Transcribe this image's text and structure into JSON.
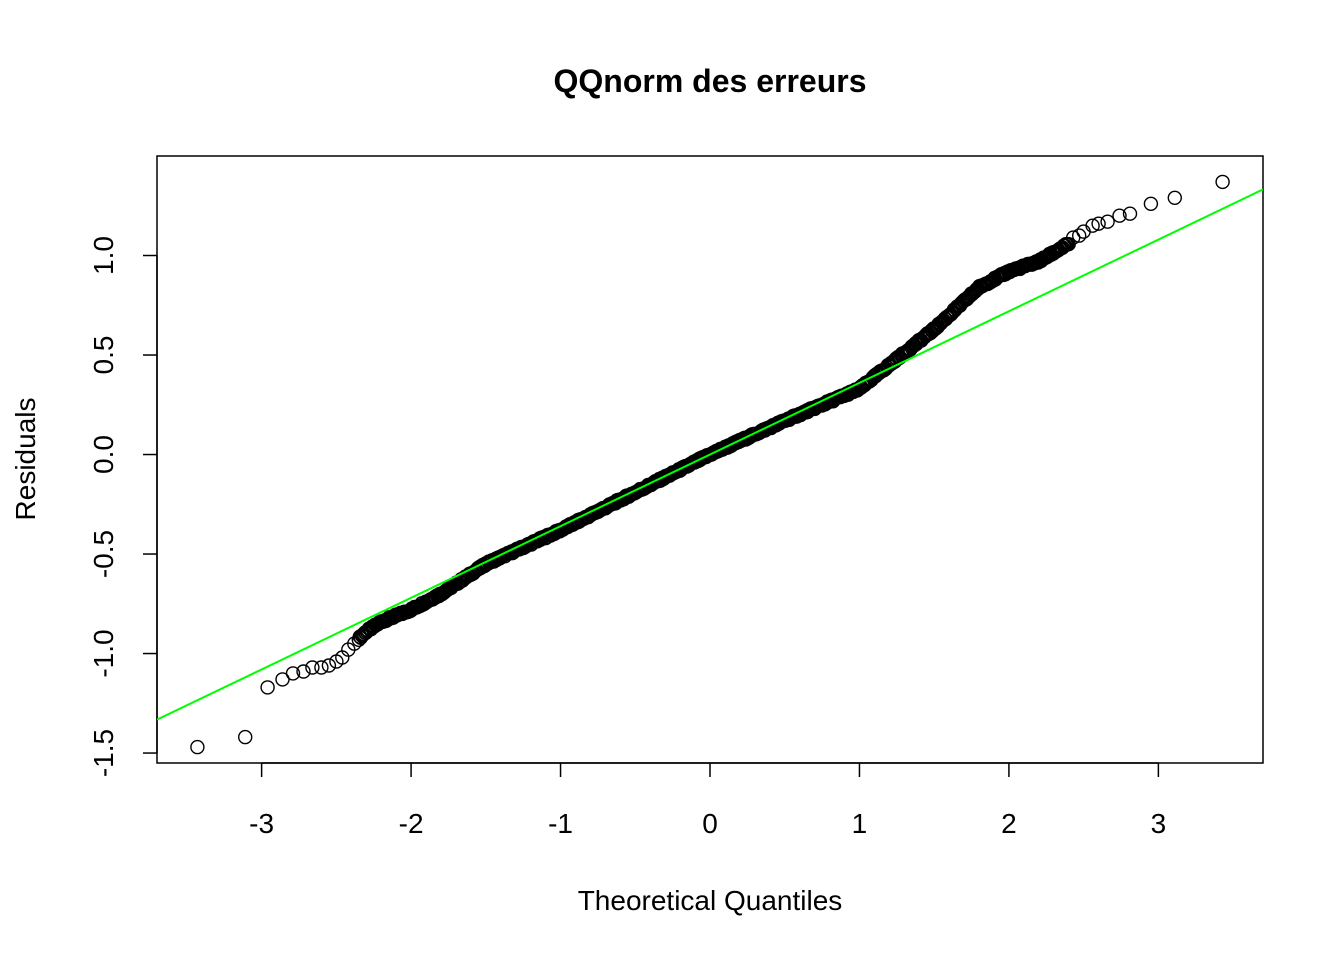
{
  "chart_data": {
    "type": "scatter",
    "title": "QQnorm des erreurs",
    "xlabel": "Theoretical Quantiles",
    "ylabel": "Residuals",
    "xlim": [
      -3.7,
      3.7
    ],
    "ylim": [
      -1.55,
      1.5
    ],
    "xticks": [
      -3,
      -2,
      -1,
      0,
      1,
      2,
      3
    ],
    "xtick_labels": [
      "-3",
      "-2",
      "-1",
      "0",
      "1",
      "2",
      "3"
    ],
    "yticks": [
      -1.5,
      -1.0,
      -0.5,
      0.0,
      0.5,
      1.0
    ],
    "ytick_labels": [
      "-1.5",
      "-1.0",
      "-0.5",
      "0.0",
      "0.5",
      "1.0"
    ],
    "grid": false,
    "colors": {
      "points": "#000000",
      "qqline": "#00ff00"
    },
    "qqline": {
      "slope": 0.36,
      "intercept": 0.0
    },
    "sample_size": 4000,
    "anchors": [
      [
        -3.43,
        -1.47
      ],
      [
        -3.11,
        -1.42
      ],
      [
        -2.96,
        -1.17
      ],
      [
        -2.86,
        -1.13
      ],
      [
        -2.78,
        -1.1
      ],
      [
        -2.7,
        -1.08
      ],
      [
        -2.6,
        -1.06
      ],
      [
        -2.5,
        -1.03
      ],
      [
        -2.4,
        -0.96
      ],
      [
        -2.3,
        -0.89
      ],
      [
        -2.2,
        -0.84
      ],
      [
        -2.0,
        -0.78
      ],
      [
        -1.8,
        -0.7
      ],
      [
        -1.5,
        -0.55
      ],
      [
        -1.0,
        -0.38
      ],
      [
        -0.5,
        -0.19
      ],
      [
        0.0,
        0.0
      ],
      [
        0.5,
        0.17
      ],
      [
        1.0,
        0.33
      ],
      [
        1.2,
        0.45
      ],
      [
        1.5,
        0.63
      ],
      [
        1.8,
        0.84
      ],
      [
        2.0,
        0.92
      ],
      [
        2.2,
        0.97
      ],
      [
        2.4,
        1.06
      ],
      [
        2.6,
        1.14
      ],
      [
        2.8,
        1.22
      ],
      [
        2.95,
        1.26
      ],
      [
        3.11,
        1.29
      ],
      [
        3.43,
        1.37
      ]
    ],
    "outliers": [
      [
        -3.43,
        -1.47
      ],
      [
        -3.11,
        -1.42
      ],
      [
        -2.96,
        -1.17
      ],
      [
        -2.86,
        -1.13
      ],
      [
        -2.79,
        -1.1
      ],
      [
        -2.72,
        -1.09
      ],
      [
        -2.66,
        -1.07
      ],
      [
        -2.6,
        -1.07
      ],
      [
        -2.55,
        -1.06
      ],
      [
        -2.5,
        -1.04
      ],
      [
        -2.46,
        -1.02
      ],
      [
        -2.42,
        -0.98
      ],
      [
        -2.38,
        -0.95
      ],
      [
        2.43,
        1.09
      ],
      [
        2.47,
        1.1
      ],
      [
        2.5,
        1.12
      ],
      [
        2.56,
        1.15
      ],
      [
        2.6,
        1.16
      ],
      [
        2.66,
        1.17
      ],
      [
        2.74,
        1.2
      ],
      [
        2.81,
        1.21
      ],
      [
        2.95,
        1.26
      ],
      [
        3.11,
        1.29
      ],
      [
        3.43,
        1.37
      ]
    ]
  }
}
